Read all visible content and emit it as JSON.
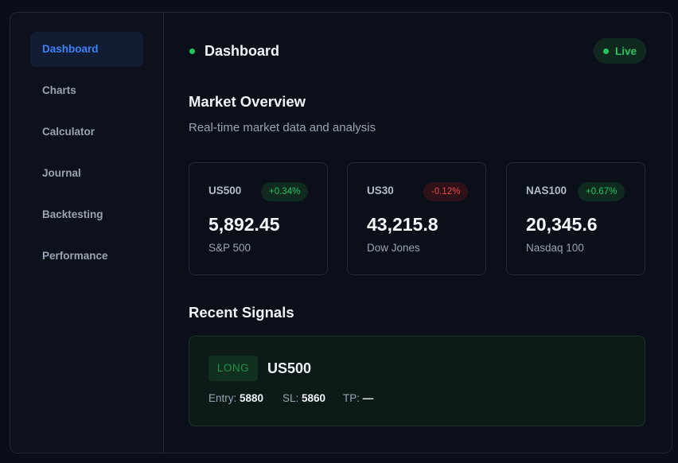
{
  "sidebar": {
    "items": [
      {
        "label": "Dashboard",
        "active": true
      },
      {
        "label": "Charts"
      },
      {
        "label": "Calculator"
      },
      {
        "label": "Journal"
      },
      {
        "label": "Backtesting"
      },
      {
        "label": "Performance"
      }
    ]
  },
  "header": {
    "title": "Dashboard",
    "status": "Live"
  },
  "overview": {
    "title": "Market Overview",
    "subtitle": "Real-time market data and analysis"
  },
  "markets": [
    {
      "symbol": "US500",
      "change": "+0.34%",
      "direction": "up",
      "price": "5,892.45",
      "name": "S&P 500"
    },
    {
      "symbol": "US30",
      "change": "-0.12%",
      "direction": "down",
      "price": "43,215.8",
      "name": "Dow Jones"
    },
    {
      "symbol": "NAS100",
      "change": "+0.67%",
      "direction": "up",
      "price": "20,345.6",
      "name": "Nasdaq 100"
    }
  ],
  "signals": {
    "title": "Recent Signals",
    "items": [
      {
        "side": "LONG",
        "symbol": "US500",
        "entry_label": "Entry:",
        "entry": "5880",
        "sl_label": "SL:",
        "sl": "5860",
        "tp_label": "TP:",
        "tp": "—"
      }
    ]
  },
  "colors": {
    "accent": "#3b82f6",
    "positive": "#22c55e",
    "negative": "#ef4444"
  }
}
